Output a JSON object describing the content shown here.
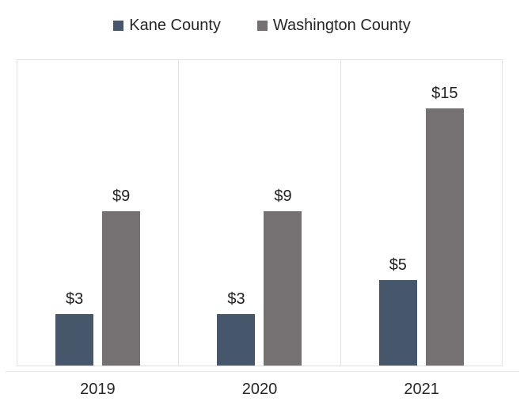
{
  "chart_data": {
    "type": "bar",
    "title": "",
    "xlabel": "",
    "ylabel": "",
    "categories": [
      "2019",
      "2020",
      "2021"
    ],
    "series": [
      {
        "name": "Kane County",
        "color": "#46566B",
        "values": [
          3,
          3,
          5
        ],
        "labels": [
          "$3",
          "$3",
          "$5"
        ]
      },
      {
        "name": "Washington County",
        "color": "#757072",
        "values": [
          9,
          9,
          15
        ],
        "labels": [
          "$9",
          "$9",
          "$15"
        ]
      }
    ],
    "value_prefix": "$",
    "ylim": [
      0,
      17.8
    ],
    "y_axis_visible": false,
    "gridlines": "vertical panel separators only",
    "legend_position": "top-center",
    "data_labels": "above bars"
  },
  "legend": {
    "items": [
      {
        "label": "Kane County",
        "color": "#46566B"
      },
      {
        "label": "Washington County",
        "color": "#757072"
      }
    ]
  },
  "colors": {
    "background": "#FFFFFF",
    "plot_border": "#E2E2E2",
    "axis_line": "#E6E6E6",
    "text": "#262626",
    "data_label_text": "#212121"
  }
}
